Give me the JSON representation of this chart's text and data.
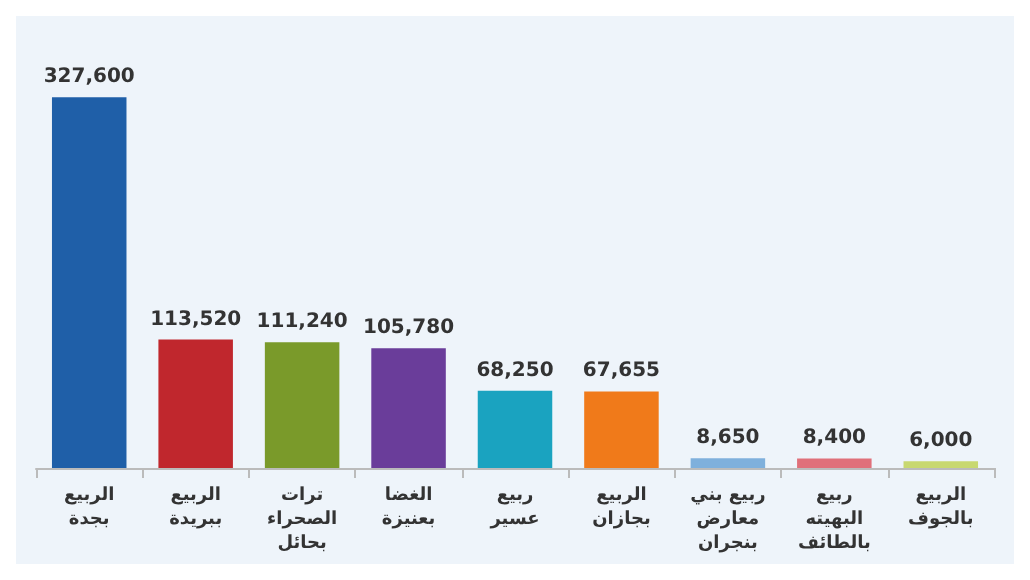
{
  "chart_data": {
    "type": "bar",
    "categories": [
      "الربيع بجدة",
      "الربيع ببريدة",
      "ترات الصحراء بحائل",
      "الغضا بعنيزة",
      "ربيع عسير",
      "الربيع بجازان",
      "ربيع بني معارض بنجران",
      "ربيع البهيته بالطائف",
      "الربيع بالجوف"
    ],
    "values": [
      327600,
      113520,
      111240,
      105780,
      68250,
      67655,
      8650,
      8400,
      6000
    ],
    "colors": [
      "#1f5fa8",
      "#c0272d",
      "#7a9a2a",
      "#6a3d9a",
      "#1aa3c0",
      "#f07a1a",
      "#7fb0dc",
      "#e0707a",
      "#c8d870"
    ],
    "value_labels": [
      "327,600",
      "113,520",
      "111,240",
      "105,780",
      "68,250",
      "67,655",
      "8,650",
      "8,400",
      "6,000"
    ],
    "grid": false
  }
}
